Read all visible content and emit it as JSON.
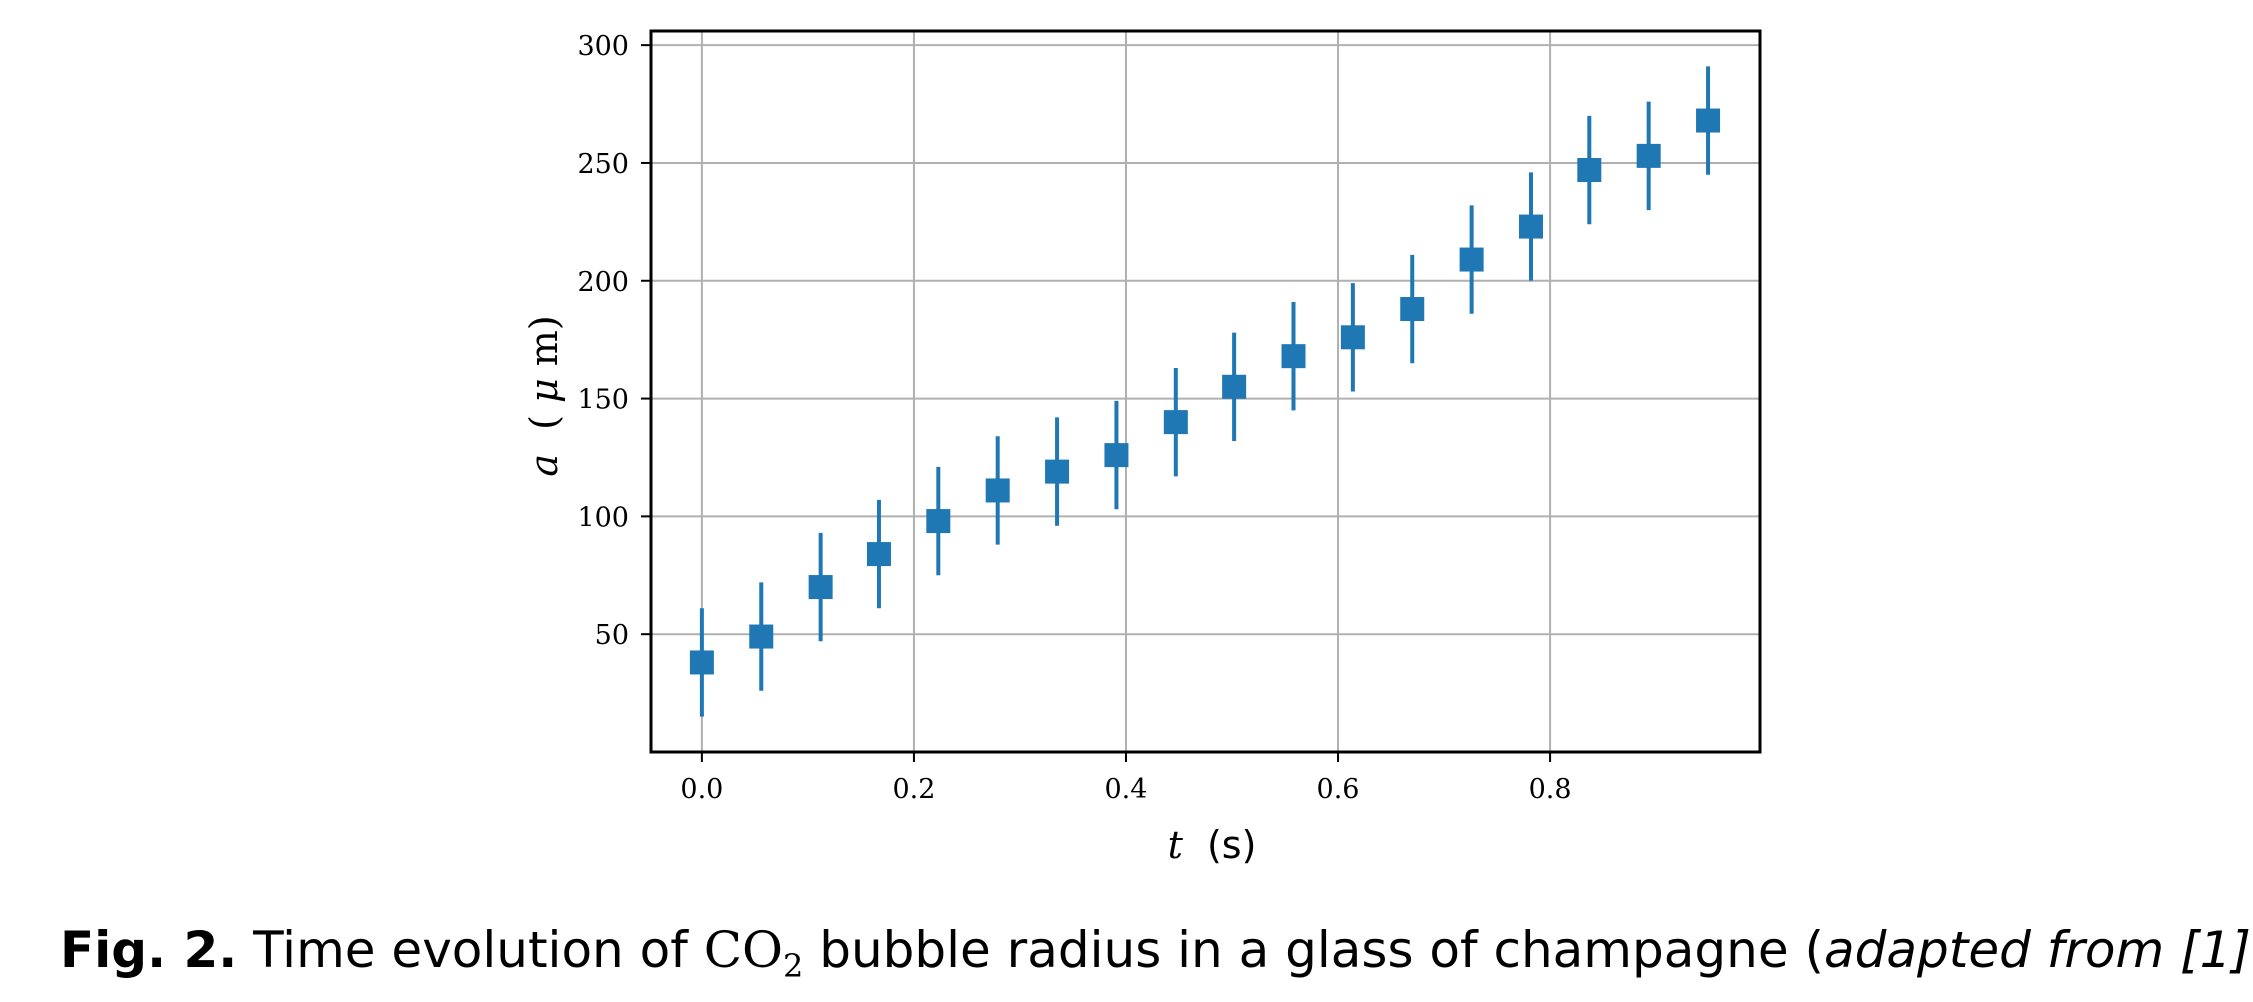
{
  "chart_data": {
    "type": "scatter",
    "marker": "square",
    "error_bars": true,
    "grid": true,
    "color": "#1f77b4",
    "xlabel": {
      "math": "t",
      "unit": "(s)"
    },
    "ylabel": {
      "math": "a",
      "unit_open": "(",
      "unit_math": "μ",
      "unit_rest": "m)"
    },
    "xlim": [
      -0.048,
      0.998
    ],
    "ylim": [
      0,
      306
    ],
    "x_ticks": [
      0.0,
      0.2,
      0.4,
      0.6,
      0.8
    ],
    "x_tick_labels": [
      "0.0",
      "0.2",
      "0.4",
      "0.6",
      "0.8"
    ],
    "y_ticks": [
      50,
      100,
      150,
      200,
      250,
      300
    ],
    "y_tick_labels": [
      "50",
      "100",
      "150",
      "200",
      "250",
      "300"
    ],
    "points": [
      {
        "x": 0.0,
        "y": 38,
        "err": 23
      },
      {
        "x": 0.056,
        "y": 49,
        "err": 23
      },
      {
        "x": 0.112,
        "y": 70,
        "err": 23
      },
      {
        "x": 0.167,
        "y": 84,
        "err": 23
      },
      {
        "x": 0.223,
        "y": 98,
        "err": 23
      },
      {
        "x": 0.279,
        "y": 111,
        "err": 23
      },
      {
        "x": 0.335,
        "y": 119,
        "err": 23
      },
      {
        "x": 0.391,
        "y": 126,
        "err": 23
      },
      {
        "x": 0.447,
        "y": 140,
        "err": 23
      },
      {
        "x": 0.502,
        "y": 155,
        "err": 23
      },
      {
        "x": 0.558,
        "y": 168,
        "err": 23
      },
      {
        "x": 0.614,
        "y": 176,
        "err": 23
      },
      {
        "x": 0.67,
        "y": 188,
        "err": 23
      },
      {
        "x": 0.726,
        "y": 209,
        "err": 23
      },
      {
        "x": 0.782,
        "y": 223,
        "err": 23
      },
      {
        "x": 0.837,
        "y": 247,
        "err": 23
      },
      {
        "x": 0.893,
        "y": 253,
        "err": 23
      },
      {
        "x": 0.949,
        "y": 268,
        "err": 23
      }
    ]
  },
  "caption": {
    "label": "Fig. 2.",
    "text_before": " Time evolution of ",
    "co2_main": "CO",
    "co2_sub": "2",
    "text_after": " bubble radius in a glass of champagne (",
    "source": "adapted from [1]",
    "closing": ")."
  }
}
